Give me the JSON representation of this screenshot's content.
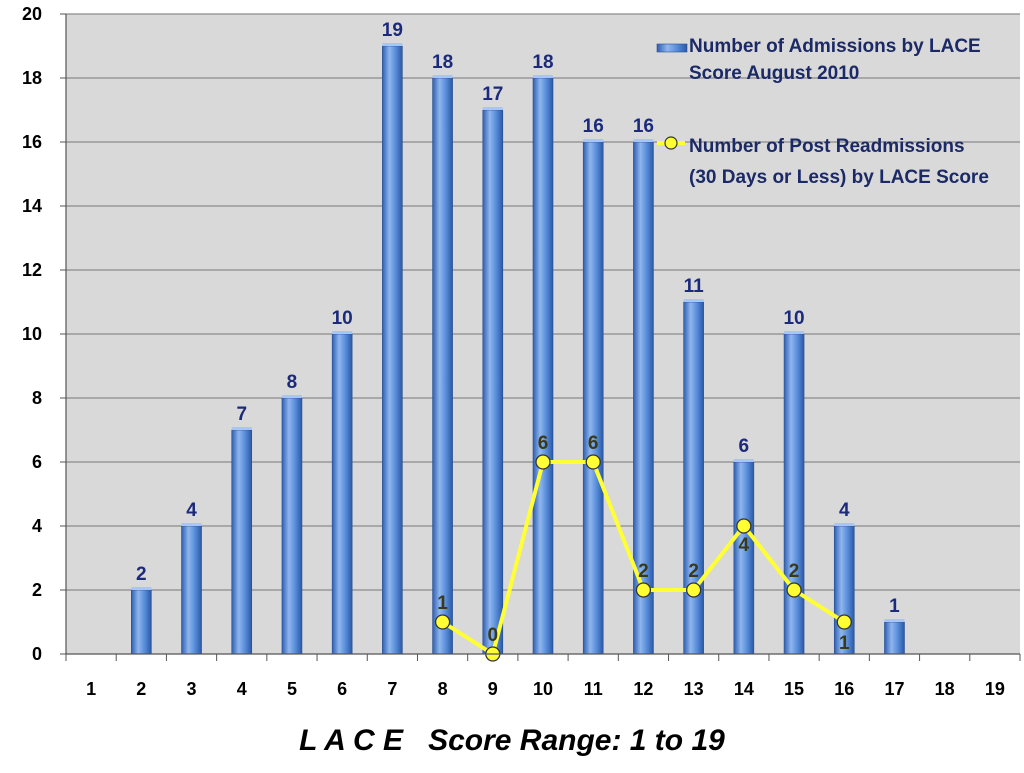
{
  "chart_data": {
    "type": "bar",
    "categories": [
      "1",
      "2",
      "3",
      "4",
      "5",
      "6",
      "7",
      "8",
      "9",
      "10",
      "11",
      "12",
      "13",
      "14",
      "15",
      "16",
      "17",
      "18",
      "19"
    ],
    "series": [
      {
        "name": "Number of Admissions by LACE Score August 2010",
        "legend_lines": [
          "Number of Admissions by LACE",
          "Score August 2010"
        ],
        "kind": "bar",
        "color": "#4f86d6",
        "values": [
          null,
          2,
          4,
          7,
          8,
          10,
          19,
          18,
          17,
          18,
          16,
          16,
          11,
          6,
          10,
          4,
          1,
          null,
          null
        ]
      },
      {
        "name": "Number of Post Readmissions (30 Days or Less) by LACE Score",
        "legend_lines": [
          "Number of Post Readmissions",
          "(30 Days or Less) by LACE Score"
        ],
        "kind": "line",
        "color": "#ffff33",
        "values": [
          null,
          null,
          null,
          null,
          null,
          null,
          null,
          1,
          0,
          6,
          6,
          2,
          2,
          4,
          2,
          1,
          null,
          null,
          null
        ]
      }
    ],
    "ylim": [
      0,
      20
    ],
    "yticks": [
      "0",
      "2",
      "4",
      "6",
      "8",
      "10",
      "12",
      "14",
      "16",
      "18",
      "20"
    ],
    "xlabel": "L A C E   Score Range: 1 to 19",
    "grid": true,
    "legend_position": "top-right"
  }
}
